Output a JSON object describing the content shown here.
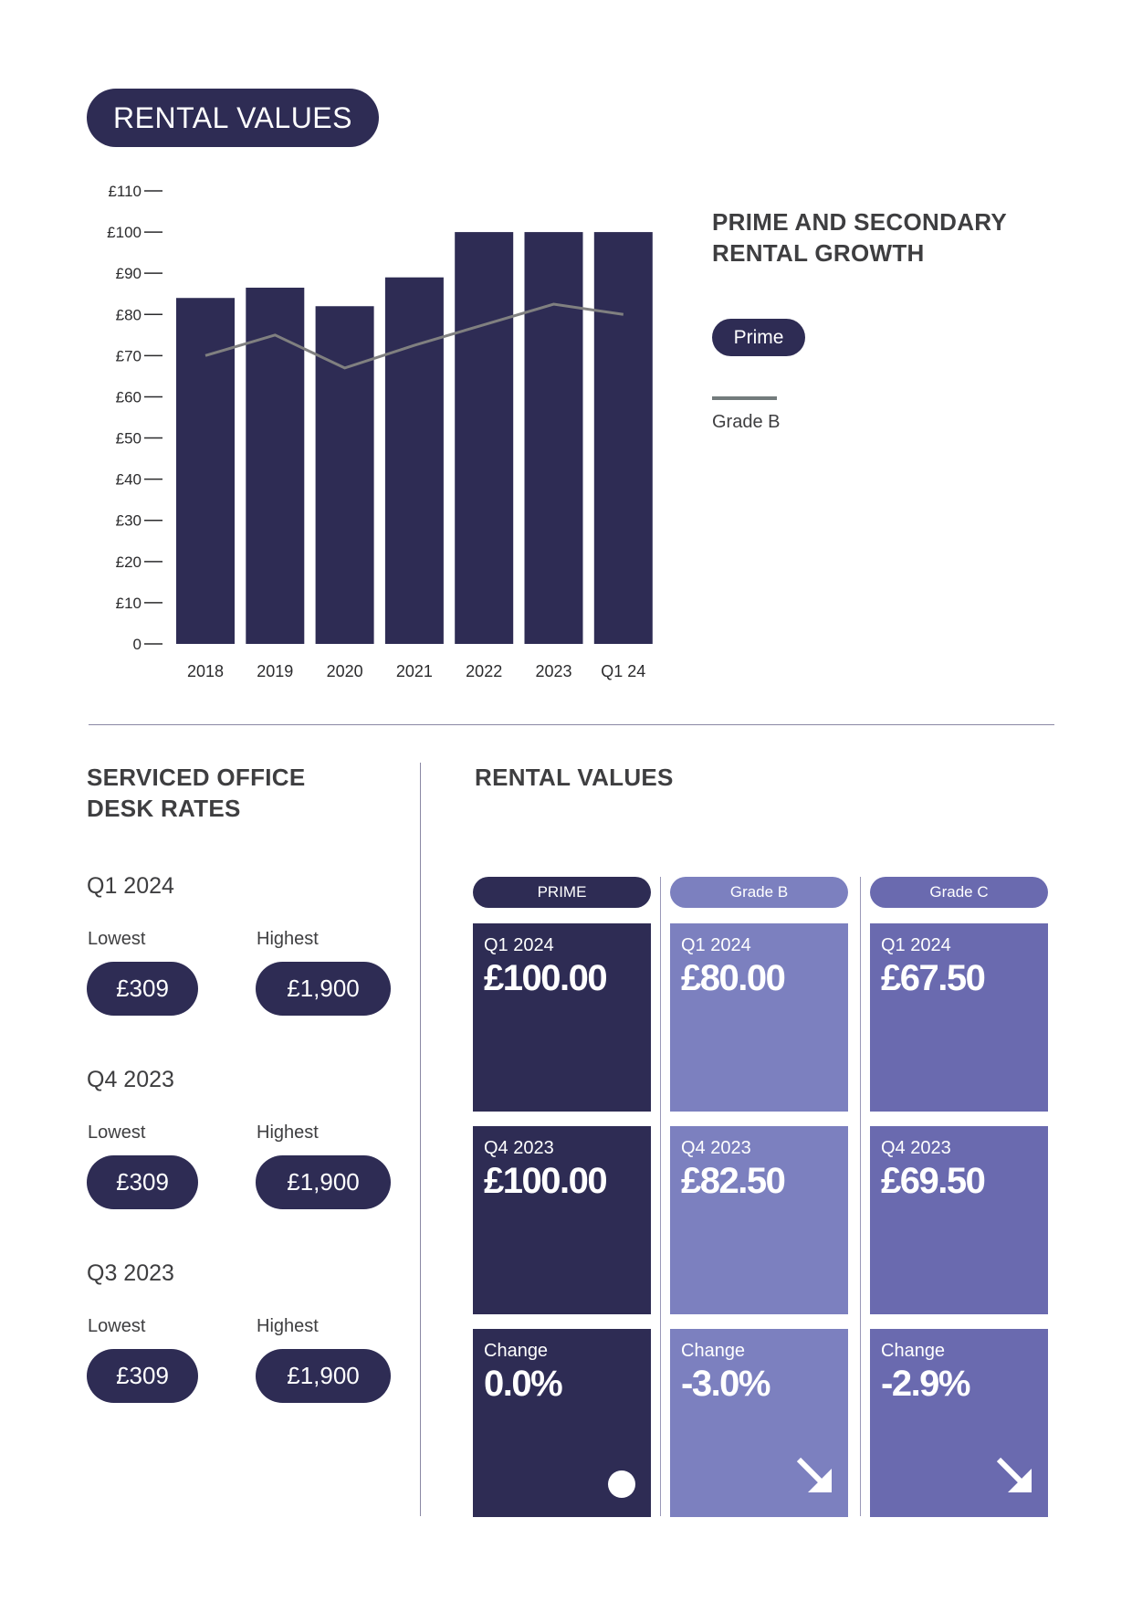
{
  "header": {
    "title": "RENTAL VALUES"
  },
  "colors": {
    "prime": "#2e2c54",
    "grade_b": "#7c80bf",
    "grade_c": "#6a6aaf",
    "line": "#808080",
    "legend_line": "#737b7c",
    "text": "#3e3e40"
  },
  "chart_data": {
    "type": "bar",
    "title": "PRIME AND SECONDARY RENTAL GROWTH",
    "xlabel": "",
    "ylabel": "",
    "categories": [
      "2018",
      "2019",
      "2020",
      "2021",
      "2022",
      "2023",
      "Q1 24"
    ],
    "series": [
      {
        "name": "Prime",
        "type": "bar",
        "values": [
          84,
          86.5,
          82,
          89,
          100,
          100,
          100
        ]
      },
      {
        "name": "Grade B",
        "type": "line",
        "values": [
          70,
          75,
          67,
          72.5,
          77.5,
          82.5,
          80
        ]
      }
    ],
    "yticks": [
      "0",
      "£10",
      "£20",
      "£30",
      "£40",
      "£50",
      "£60",
      "£70",
      "£80",
      "£90",
      "£100",
      "£110"
    ],
    "ylim": [
      0,
      110
    ],
    "grid": false,
    "legend_position": "right"
  },
  "legend": {
    "title_line1": "PRIME AND SECONDARY",
    "title_line2": "RENTAL GROWTH",
    "prime_label": "Prime",
    "grade_b_label": "Grade B"
  },
  "desk_rates": {
    "title_line1": "SERVICED OFFICE",
    "title_line2": "DESK RATES",
    "periods": [
      {
        "period": "Q1 2024",
        "lowest_label": "Lowest",
        "lowest": "£309",
        "highest_label": "Highest",
        "highest": "£1,900"
      },
      {
        "period": "Q4 2023",
        "lowest_label": "Lowest",
        "lowest": "£309",
        "highest_label": "Highest",
        "highest": "£1,900"
      },
      {
        "period": "Q3 2023",
        "lowest_label": "Lowest",
        "lowest": "£309",
        "highest_label": "Highest",
        "highest": "£1,900"
      }
    ]
  },
  "rental_values": {
    "title": "RENTAL VALUES",
    "columns": [
      {
        "label": "PRIME",
        "cards": [
          {
            "label": "Q1 2024",
            "value": "£100.00"
          },
          {
            "label": "Q4 2023",
            "value": "£100.00"
          },
          {
            "label": "Change",
            "value": "0.0%",
            "indicator": "dot-icon"
          }
        ]
      },
      {
        "label": "Grade B",
        "cards": [
          {
            "label": "Q1 2024",
            "value": "£80.00"
          },
          {
            "label": "Q4 2023",
            "value": "£82.50"
          },
          {
            "label": "Change",
            "value": "-3.0%",
            "indicator": "arrow-down-right-icon"
          }
        ]
      },
      {
        "label": "Grade C",
        "cards": [
          {
            "label": "Q1 2024",
            "value": "£67.50"
          },
          {
            "label": "Q4 2023",
            "value": "£69.50"
          },
          {
            "label": "Change",
            "value": "-2.9%",
            "indicator": "arrow-down-right-icon"
          }
        ]
      }
    ]
  }
}
